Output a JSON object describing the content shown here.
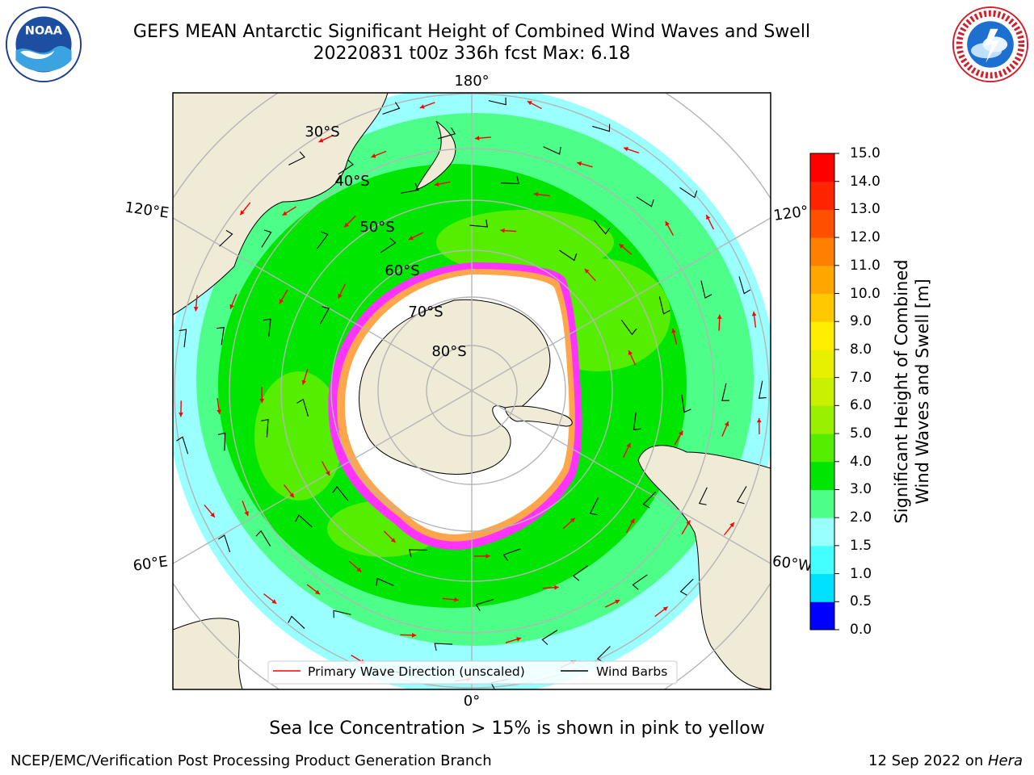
{
  "title": {
    "line1": "GEFS MEAN Antarctic Significant Height of Combined Wind Waves and Swell",
    "line2": "20220831 t00z 336h fcst   Max: 6.18"
  },
  "map": {
    "projection": "south-polar-stereographic",
    "longitude_labels": {
      "top": "180°",
      "upper_left": "120°E",
      "upper_right": "120°",
      "lower_left": "60°E",
      "lower_right": "60°W",
      "bottom": "0°"
    },
    "latitude_labels": [
      "30°S",
      "40°S",
      "50°S",
      "60°S",
      "70°S",
      "80°S"
    ],
    "colors": {
      "land": "#efebd6",
      "grid": "#b5b5b5",
      "wave_arrow": "#ff0000",
      "wind_barb": "#000000",
      "sea_ice_edge": "#ff33ff",
      "sea_ice_inner": "#ffa64d"
    }
  },
  "legend": {
    "wave_direction": "Primary Wave Direction (unscaled)",
    "wind_barbs": "Wind Barbs"
  },
  "colorbar": {
    "label": "Significant Height of Combined Wind Waves and Swell [m]",
    "label_line1": "Significant Height of Combined",
    "label_line2": "Wind Waves and Swell [m]",
    "ticks": [
      "15.0",
      "14.0",
      "13.0",
      "12.0",
      "11.0",
      "10.0",
      "9.0",
      "8.0",
      "7.0",
      "6.0",
      "5.0",
      "4.0",
      "3.0",
      "2.0",
      "1.5",
      "1.0",
      "0.5",
      "0.0"
    ],
    "colors": [
      "#0000ff",
      "#0077ff",
      "#00e0ff",
      "#44ffff",
      "#99ffff",
      "#4dff88",
      "#00e600",
      "#55ee00",
      "#99f000",
      "#c8f000",
      "#e6f000",
      "#ffee00",
      "#ffc800",
      "#ffa600",
      "#ff8000",
      "#ff5000",
      "#ff2500",
      "#ff0000"
    ]
  },
  "caption": "Sea Ice Concentration > 15% is shown in pink to yellow",
  "footer": {
    "left": "NCEP/EMC/Verification Post Processing Product Generation Branch",
    "right_date": "12 Sep 2022 on ",
    "right_machine": "Hera"
  }
}
